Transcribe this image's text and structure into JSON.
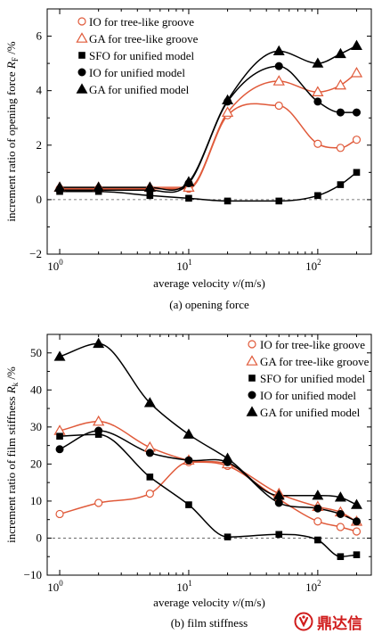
{
  "chart_data": [
    {
      "type": "scatter",
      "subtitle": "(a) opening force",
      "xlabel_prefix": "average velocity ",
      "xlabel_var": "v",
      "xlabel_suffix": "/(m/s)",
      "ylabel_prefix": "increment ratio of opening force ",
      "ylabel_var": "R",
      "ylabel_sub": "F",
      "ylabel_suffix": " /%",
      "xscale": "log",
      "xlim": [
        0.8,
        260
      ],
      "ylim": [
        -2,
        7
      ],
      "xticks": [
        1,
        10,
        100
      ],
      "xtick_labels": [
        "10^0",
        "10^1",
        "10^2"
      ],
      "yticks": [
        -2,
        0,
        2,
        4,
        6
      ],
      "ytick_labels": [
        "−2",
        "0",
        "2",
        "4",
        "6"
      ],
      "legend_position": "top-left",
      "reference_line": 0,
      "series": [
        {
          "name": "IO for tree-like groove",
          "marker": "circle-open",
          "color": "#e05a3a",
          "x": [
            1,
            2,
            5,
            10,
            20,
            50,
            100,
            150,
            200
          ],
          "y": [
            0.4,
            0.4,
            0.4,
            0.4,
            3.1,
            3.45,
            2.05,
            1.9,
            2.2
          ]
        },
        {
          "name": "GA for tree-like groove",
          "marker": "triangle-open",
          "color": "#e05a3a",
          "x": [
            1,
            2,
            5,
            10,
            20,
            50,
            100,
            150,
            200
          ],
          "y": [
            0.45,
            0.45,
            0.45,
            0.45,
            3.2,
            4.35,
            3.95,
            4.2,
            4.65
          ]
        },
        {
          "name": "SFO for unified model",
          "marker": "square-filled",
          "color": "#000000",
          "x": [
            1,
            2,
            5,
            10,
            20,
            50,
            100,
            150,
            200
          ],
          "y": [
            0.3,
            0.3,
            0.15,
            0.05,
            -0.05,
            -0.05,
            0.15,
            0.55,
            1.0
          ]
        },
        {
          "name": "IO for unified model",
          "marker": "circle-filled",
          "color": "#000000",
          "x": [
            1,
            2,
            5,
            10,
            20,
            50,
            100,
            150,
            200
          ],
          "y": [
            0.35,
            0.35,
            0.35,
            0.6,
            3.6,
            4.9,
            3.6,
            3.2,
            3.2
          ]
        },
        {
          "name": "GA for unified model",
          "marker": "triangle-filled",
          "color": "#000000",
          "x": [
            1,
            2,
            5,
            10,
            20,
            50,
            100,
            150,
            200
          ],
          "y": [
            0.45,
            0.45,
            0.45,
            0.65,
            3.65,
            5.45,
            5.0,
            5.35,
            5.65
          ]
        }
      ]
    },
    {
      "type": "scatter",
      "subtitle": "(b) film stiffness",
      "xlabel_prefix": "average velocity ",
      "xlabel_var": "v",
      "xlabel_suffix": "/(m/s)",
      "ylabel_prefix": "increment ratio of film stiffness ",
      "ylabel_var": "R",
      "ylabel_sub": "k",
      "ylabel_suffix": " /%",
      "xscale": "log",
      "xlim": [
        0.8,
        260
      ],
      "ylim": [
        -10,
        55
      ],
      "xticks": [
        1,
        10,
        100
      ],
      "xtick_labels": [
        "10^0",
        "10^1",
        "10^2"
      ],
      "yticks": [
        -10,
        0,
        10,
        20,
        30,
        40,
        50
      ],
      "ytick_labels": [
        "−10",
        "0",
        "10",
        "20",
        "30",
        "40",
        "50"
      ],
      "legend_position": "top-right",
      "reference_line": 0,
      "series": [
        {
          "name": "IO for tree-like groove",
          "marker": "circle-open",
          "color": "#e05a3a",
          "x": [
            1,
            2,
            5,
            10,
            20,
            50,
            100,
            150,
            200
          ],
          "y": [
            6.5,
            9.5,
            12.0,
            20.5,
            19.5,
            10.5,
            4.5,
            3.0,
            1.8
          ]
        },
        {
          "name": "GA for tree-like groove",
          "marker": "triangle-open",
          "color": "#e05a3a",
          "x": [
            1,
            2,
            5,
            10,
            20,
            50,
            100,
            150,
            200
          ],
          "y": [
            29.0,
            31.5,
            24.5,
            21.0,
            20.0,
            12.0,
            8.5,
            7.0,
            4.5
          ]
        },
        {
          "name": "SFO for unified model",
          "marker": "square-filled",
          "color": "#000000",
          "x": [
            1,
            2,
            5,
            10,
            20,
            50,
            100,
            150,
            200
          ],
          "y": [
            27.5,
            28.0,
            16.5,
            9.0,
            0.3,
            1.0,
            -0.5,
            -5.0,
            -4.5
          ]
        },
        {
          "name": "IO for unified model",
          "marker": "circle-filled",
          "color": "#000000",
          "x": [
            1,
            2,
            5,
            10,
            20,
            50,
            100,
            150,
            200
          ],
          "y": [
            24.0,
            29.0,
            23.0,
            21.0,
            20.5,
            9.5,
            8.0,
            6.5,
            4.5
          ]
        },
        {
          "name": "GA for unified model",
          "marker": "triangle-filled",
          "color": "#000000",
          "x": [
            1,
            2,
            5,
            10,
            20,
            50,
            100,
            150,
            200
          ],
          "y": [
            49.0,
            52.5,
            36.5,
            28.0,
            21.5,
            11.5,
            11.5,
            11.0,
            9.0
          ]
        }
      ]
    }
  ],
  "watermark": {
    "text": "鼎达信",
    "icon": "logo-icon",
    "color": "#d01c1c"
  }
}
